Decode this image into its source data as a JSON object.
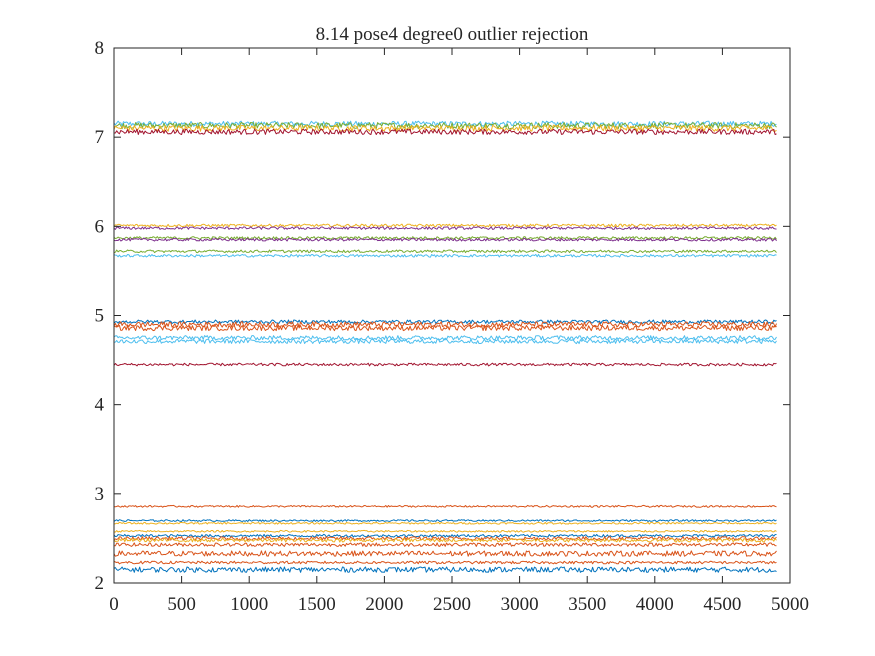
{
  "chart_data": {
    "type": "line",
    "title": "8.14 pose4  degree0 outlier rejection",
    "xlabel": "",
    "ylabel": "",
    "xlim": [
      0,
      5000
    ],
    "ylim": [
      2,
      8
    ],
    "xticks": [
      0,
      500,
      1000,
      1500,
      2000,
      2500,
      3000,
      3500,
      4000,
      4500,
      5000
    ],
    "yticks": [
      2,
      3,
      4,
      5,
      6,
      7,
      8
    ],
    "x_range": [
      0,
      4900
    ],
    "grid": false,
    "legend": "none",
    "noise_note_unit": "y units",
    "series": [
      {
        "mean": 7.15,
        "noise": 0.03,
        "color": "#4DBEEE"
      },
      {
        "mean": 7.13,
        "noise": 0.035,
        "color": "#77AC30"
      },
      {
        "mean": 7.1,
        "noise": 0.035,
        "color": "#EDB120"
      },
      {
        "mean": 7.06,
        "noise": 0.03,
        "color": "#A2142F"
      },
      {
        "mean": 6.01,
        "noise": 0.015,
        "color": "#EDB120"
      },
      {
        "mean": 5.98,
        "noise": 0.015,
        "color": "#7E2F8E"
      },
      {
        "mean": 5.87,
        "noise": 0.015,
        "color": "#77AC30"
      },
      {
        "mean": 5.85,
        "noise": 0.015,
        "color": "#7E2F8E"
      },
      {
        "mean": 5.72,
        "noise": 0.015,
        "color": "#77AC30"
      },
      {
        "mean": 5.67,
        "noise": 0.015,
        "color": "#4DBEEE"
      },
      {
        "mean": 4.93,
        "noise": 0.02,
        "color": "#0072BD"
      },
      {
        "mean": 4.9,
        "noise": 0.03,
        "color": "#D95319"
      },
      {
        "mean": 4.86,
        "noise": 0.03,
        "color": "#D95319"
      },
      {
        "mean": 4.75,
        "noise": 0.025,
        "color": "#4DBEEE"
      },
      {
        "mean": 4.71,
        "noise": 0.025,
        "color": "#4DBEEE"
      },
      {
        "mean": 4.45,
        "noise": 0.015,
        "color": "#A2142F"
      },
      {
        "mean": 2.86,
        "noise": 0.01,
        "color": "#D95319"
      },
      {
        "mean": 2.7,
        "noise": 0.01,
        "color": "#0072BD"
      },
      {
        "mean": 2.67,
        "noise": 0.01,
        "color": "#EDB120"
      },
      {
        "mean": 2.58,
        "noise": 0.01,
        "color": "#EDB120"
      },
      {
        "mean": 2.53,
        "noise": 0.015,
        "color": "#0072BD"
      },
      {
        "mean": 2.5,
        "noise": 0.02,
        "color": "#D95319"
      },
      {
        "mean": 2.48,
        "noise": 0.02,
        "color": "#EDB120"
      },
      {
        "mean": 2.43,
        "noise": 0.02,
        "color": "#D95319"
      },
      {
        "mean": 2.33,
        "noise": 0.03,
        "color": "#D95319"
      },
      {
        "mean": 2.23,
        "noise": 0.015,
        "color": "#D95319"
      },
      {
        "mean": 2.15,
        "noise": 0.03,
        "color": "#0072BD"
      }
    ]
  }
}
